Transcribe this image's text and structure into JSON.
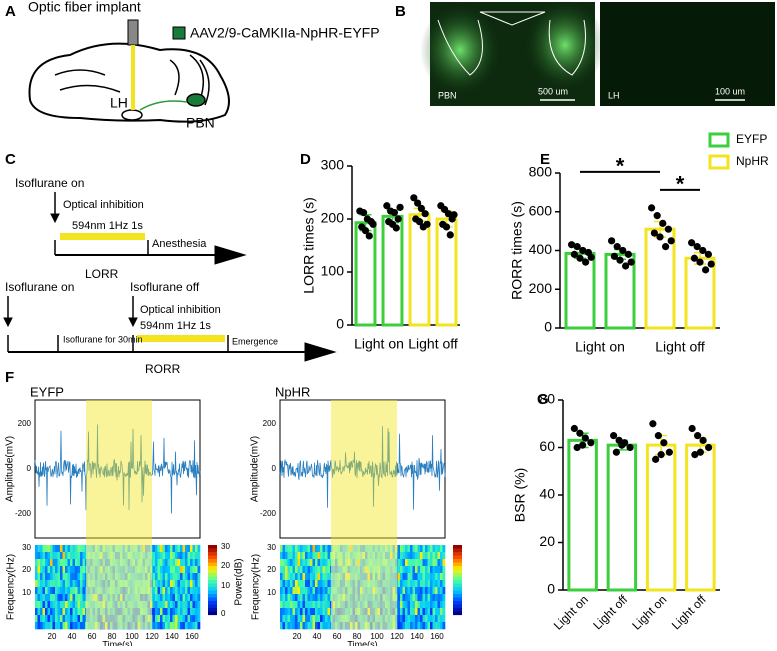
{
  "panel_labels": [
    "A",
    "B",
    "C",
    "D",
    "E",
    "F",
    "G"
  ],
  "panel_a": {
    "fiber": "Optic fiber implant",
    "virus": "AAV2/9-CaMKIIa-NpHR-EYFP",
    "lh": "LH",
    "pbn": "PBN"
  },
  "panel_b": {
    "left_region": "PBN",
    "left_scale": "500 um",
    "right_region": "LH",
    "right_scale": "100 um"
  },
  "panel_c": {
    "lorr": {
      "start": "Isoflurane  on",
      "inhibition": "Optical inhibition",
      "light": "594nm 1Hz 1s",
      "end": "Anesthesia",
      "name": "LORR"
    },
    "rorr": {
      "start": "Isoflurane on",
      "stop": "Isoflurane off",
      "inhibition": "Optical inhibition",
      "light": "594nm 1Hz 1s",
      "duration": "Isoflurane for 30min",
      "end": "Emergence",
      "name": "RORR"
    }
  },
  "panel_f": {
    "titles": [
      "EYFP",
      "NpHR"
    ],
    "amplitude_label": "Amplitude(mV)",
    "amplitude_ticks": [
      "200",
      "0",
      "-200"
    ],
    "frequency_label": "Frequency(Hz)",
    "frequency_ticks": [
      "30",
      "20",
      "10"
    ],
    "power_label": "Power(dB)",
    "power_ticks": [
      "30",
      "20",
      "10",
      "0"
    ],
    "time_label": "Time(s)",
    "time_ticks": [
      "20",
      "40",
      "60",
      "80",
      "100",
      "120",
      "140",
      "160"
    ]
  },
  "chart_data": [
    {
      "type": "bar",
      "y_label": "LORR times (s)",
      "categories": [
        "Light on",
        null,
        "Light off",
        null
      ],
      "ylim": [
        0,
        300
      ],
      "yticks": [
        0,
        100,
        200,
        300
      ],
      "legend": false,
      "series": [
        {
          "name": "EYFP",
          "color": "#3ccf3c",
          "values": [
            193,
            205,
            null,
            null
          ],
          "errors": [
            15,
            12,
            null,
            null
          ],
          "points": [
            [
              215,
              212,
              200,
              195,
              185,
              178,
              168,
              190
            ],
            [
              225,
              215,
              212,
              200,
              195,
              190,
              183,
              222
            ],
            null,
            null
          ]
        },
        {
          "name": "NpHR",
          "color": "#f2e41e",
          "values": [
            null,
            null,
            208,
            200
          ],
          "errors": [
            null,
            null,
            12,
            15
          ],
          "points": [
            null,
            null,
            [
              240,
              230,
              220,
              210,
              200,
              195,
              185,
              190
            ],
            [
              225,
              218,
              210,
              200,
              190,
              185,
              170,
              208
            ]
          ]
        }
      ]
    },
    {
      "type": "bar",
      "y_label": "RORR times (s)",
      "categories": [
        "Light on",
        null,
        "Light off",
        null
      ],
      "ylim": [
        0,
        800
      ],
      "yticks": [
        0,
        200,
        400,
        600,
        800
      ],
      "legend": "upper-right",
      "annotations": [
        {
          "text": "*",
          "between": [
            0,
            2
          ]
        },
        {
          "text": "*",
          "between": [
            2,
            3
          ]
        }
      ],
      "series": [
        {
          "name": "EYFP",
          "color": "#3ccf3c",
          "values": [
            385,
            380,
            null,
            null
          ],
          "errors": [
            25,
            25,
            null,
            null
          ],
          "points": [
            [
              430,
              420,
              400,
              390,
              380,
              360,
              340,
              365
            ],
            [
              450,
              420,
              400,
              380,
              370,
              350,
              320,
              340
            ],
            null,
            null
          ]
        },
        {
          "name": "NpHR",
          "color": "#f2e41e",
          "values": [
            null,
            null,
            510,
            360
          ],
          "errors": [
            null,
            null,
            40,
            30
          ],
          "points": [
            null,
            null,
            [
              620,
              580,
              540,
              510,
              490,
              470,
              420,
              450
            ],
            [
              440,
              420,
              400,
              380,
              360,
              340,
              300,
              330
            ]
          ]
        }
      ]
    },
    {
      "type": "bar",
      "y_label": "BSR (%)",
      "categories": [
        "Light on",
        "Light off",
        "Light on",
        "Light off"
      ],
      "ylim": [
        0,
        80
      ],
      "yticks": [
        0,
        20,
        40,
        60,
        80
      ],
      "legend": false,
      "series": [
        {
          "name": "EYFP",
          "color": "#3ccf3c",
          "values": [
            63,
            61,
            null,
            null
          ],
          "errors": [
            3,
            2,
            null,
            null
          ],
          "points": [
            [
              68,
              66,
              64,
              62,
              60,
              61
            ],
            [
              65,
              63,
              62,
              60,
              58,
              61
            ],
            null,
            null
          ]
        },
        {
          "name": "NpHR",
          "color": "#f2e41e",
          "values": [
            null,
            null,
            61,
            61
          ],
          "errors": [
            null,
            null,
            4,
            3
          ],
          "points": [
            null,
            null,
            [
              70,
              65,
              62,
              58,
              55,
              57
            ],
            [
              68,
              65,
              63,
              60,
              57,
              58
            ]
          ]
        }
      ]
    }
  ]
}
